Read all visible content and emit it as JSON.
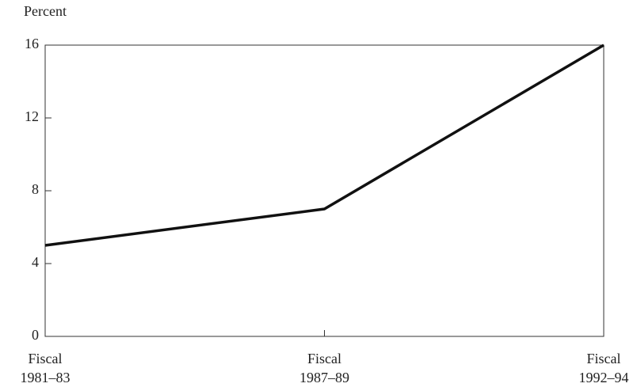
{
  "chart_data": {
    "type": "line",
    "y_label": "Percent",
    "categories": [
      "Fiscal 1981–83",
      "Fiscal 1987–89",
      "Fiscal 1992–94"
    ],
    "values": [
      5,
      7,
      16
    ],
    "color": "#111111",
    "ylim": [
      0,
      16
    ],
    "yticks": [
      0,
      4,
      8,
      12,
      16
    ]
  }
}
